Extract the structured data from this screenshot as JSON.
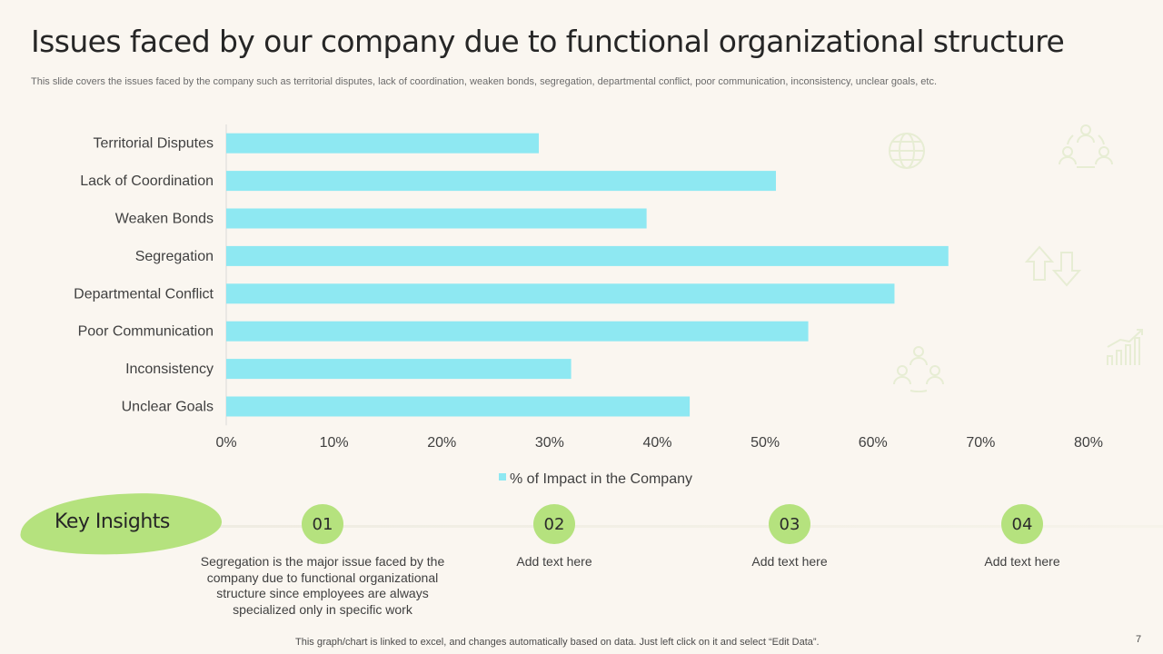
{
  "title": "Issues faced by our company due to functional organizational structure",
  "subtitle": "This slide covers the issues faced by the company such as territorial disputes, lack of coordination, weaken bonds, segregation, departmental conflict, poor communication, inconsistency, unclear goals, etc.",
  "chart_data": {
    "type": "bar",
    "orientation": "horizontal",
    "categories": [
      "Territorial Disputes",
      "Lack of Coordination",
      "Weaken Bonds",
      "Segregation",
      "Departmental Conflict",
      "Poor Communication",
      "Inconsistency",
      "Unclear Goals"
    ],
    "series": [
      {
        "name": "% of Impact in the Company",
        "values": [
          29,
          51,
          39,
          67,
          62,
          54,
          32,
          43
        ],
        "color": "#8ee8f2"
      }
    ],
    "xlim": [
      0,
      80
    ],
    "xticks": [
      0,
      10,
      20,
      30,
      40,
      50,
      60,
      70,
      80
    ],
    "tick_suffix": "%",
    "legend_position": "bottom",
    "grid": false
  },
  "insights": {
    "heading": "Key Insights",
    "items": [
      {
        "number": "01",
        "text": "Segregation is the major issue faced by the company due to functional organizational structure since employees are always specialized only in specific work"
      },
      {
        "number": "02",
        "text": "Add text here"
      },
      {
        "number": "03",
        "text": "Add text here"
      },
      {
        "number": "04",
        "text": "Add text here"
      }
    ]
  },
  "footer": "This graph/chart is linked to excel,  and changes automatically based on data. Just left click on it and select “Edit Data”.",
  "page_number": "7",
  "colors": {
    "accent_green": "#b5e27e",
    "bar": "#8ee8f2",
    "background": "#faf6f0"
  },
  "icons": [
    "globe-icon",
    "team-network-icon",
    "up-down-arrows-icon",
    "team-icon",
    "growth-chart-icon"
  ]
}
